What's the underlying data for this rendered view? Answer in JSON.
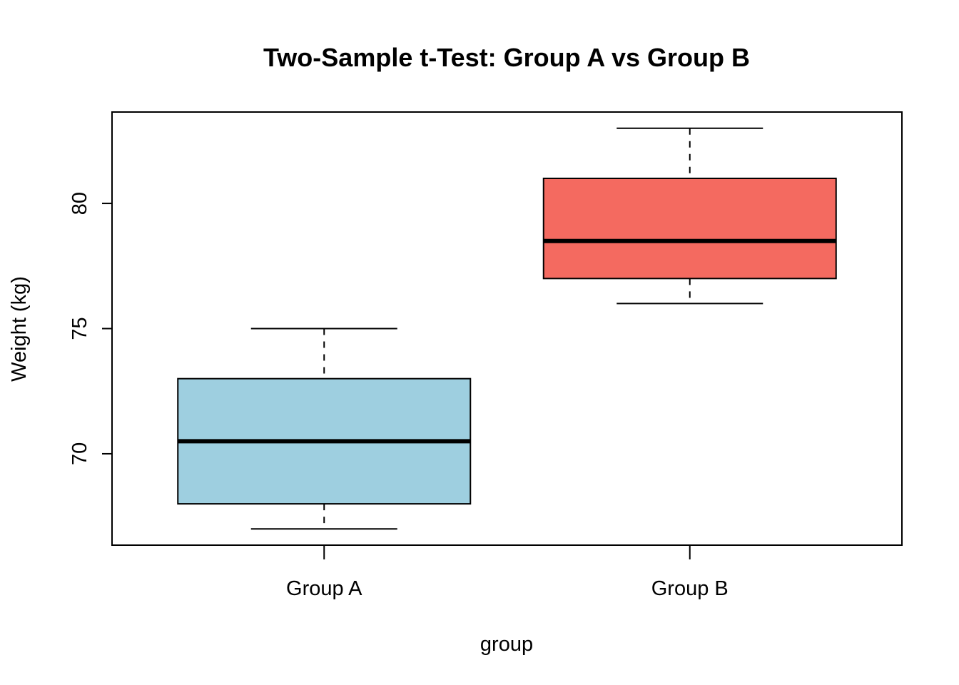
{
  "chart_data": {
    "type": "boxplot",
    "title": "Two-Sample t-Test: Group A vs Group B",
    "xlabel": "group",
    "ylabel": "Weight (kg)",
    "ylim": [
      66.35,
      83.65
    ],
    "yticks": [
      70,
      75,
      80
    ],
    "grid": false,
    "legend": "none",
    "categories": [
      "Group A",
      "Group B"
    ],
    "boxes": [
      {
        "category": "Group A",
        "whisker_low": 67,
        "q1": 68,
        "median": 70.5,
        "q3": 73,
        "whisker_high": 75,
        "color": "#9ECFE0"
      },
      {
        "category": "Group B",
        "whisker_low": 76,
        "q1": 77,
        "median": 78.5,
        "q3": 81,
        "whisker_high": 83,
        "color": "#F46A60"
      }
    ]
  }
}
